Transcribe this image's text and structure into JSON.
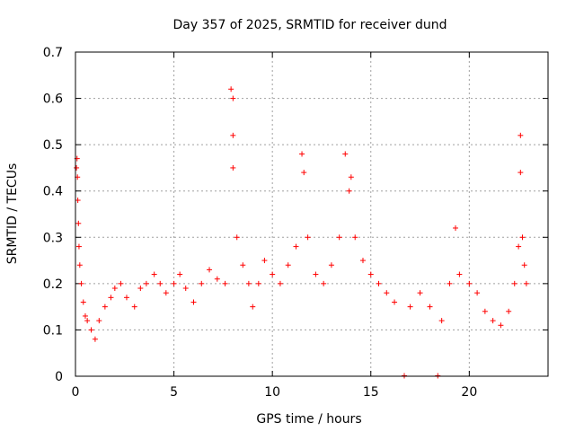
{
  "chart_data": {
    "type": "scatter",
    "title": "Day 357 of 2025, SRMTID for receiver dund",
    "xlabel": "GPS time / hours",
    "ylabel": "SRMTID / TECUs",
    "xlim": [
      0,
      24
    ],
    "ylim": [
      0,
      0.7
    ],
    "xticks": [
      0,
      5,
      10,
      15,
      20
    ],
    "xtick_labels": [
      "0",
      "5",
      "10",
      "15",
      "20"
    ],
    "yticks": [
      0,
      0.1,
      0.2,
      0.3,
      0.4,
      0.5,
      0.6,
      0.7
    ],
    "ytick_labels": [
      "0",
      "0.1",
      "0.2",
      "0.3",
      "0.4",
      "0.5",
      "0.6",
      "0.7"
    ],
    "grid": true,
    "marker": "+",
    "marker_color": "#ff0000",
    "series": [
      {
        "name": "SRMTID",
        "points": [
          [
            0.05,
            0.45
          ],
          [
            0.08,
            0.47
          ],
          [
            0.1,
            0.43
          ],
          [
            0.12,
            0.38
          ],
          [
            0.15,
            0.33
          ],
          [
            0.18,
            0.28
          ],
          [
            0.22,
            0.24
          ],
          [
            0.3,
            0.2
          ],
          [
            0.4,
            0.16
          ],
          [
            0.5,
            0.13
          ],
          [
            0.6,
            0.12
          ],
          [
            0.8,
            0.1
          ],
          [
            1.0,
            0.08
          ],
          [
            1.2,
            0.12
          ],
          [
            1.5,
            0.15
          ],
          [
            1.8,
            0.17
          ],
          [
            2.0,
            0.19
          ],
          [
            2.3,
            0.2
          ],
          [
            2.6,
            0.17
          ],
          [
            3.0,
            0.15
          ],
          [
            3.3,
            0.19
          ],
          [
            3.6,
            0.2
          ],
          [
            4.0,
            0.22
          ],
          [
            4.3,
            0.2
          ],
          [
            4.6,
            0.18
          ],
          [
            5.0,
            0.2
          ],
          [
            5.3,
            0.22
          ],
          [
            5.6,
            0.19
          ],
          [
            6.0,
            0.16
          ],
          [
            6.4,
            0.2
          ],
          [
            6.8,
            0.23
          ],
          [
            7.2,
            0.21
          ],
          [
            7.6,
            0.2
          ],
          [
            7.9,
            0.62
          ],
          [
            8.0,
            0.6
          ],
          [
            8.0,
            0.52
          ],
          [
            8.0,
            0.45
          ],
          [
            8.2,
            0.3
          ],
          [
            8.5,
            0.24
          ],
          [
            8.8,
            0.2
          ],
          [
            9.0,
            0.15
          ],
          [
            9.3,
            0.2
          ],
          [
            9.6,
            0.25
          ],
          [
            10.0,
            0.22
          ],
          [
            10.4,
            0.2
          ],
          [
            10.8,
            0.24
          ],
          [
            11.2,
            0.28
          ],
          [
            11.5,
            0.48
          ],
          [
            11.6,
            0.44
          ],
          [
            11.8,
            0.3
          ],
          [
            12.2,
            0.22
          ],
          [
            12.6,
            0.2
          ],
          [
            13.0,
            0.24
          ],
          [
            13.4,
            0.3
          ],
          [
            13.7,
            0.48
          ],
          [
            13.9,
            0.4
          ],
          [
            14.0,
            0.43
          ],
          [
            14.2,
            0.3
          ],
          [
            14.6,
            0.25
          ],
          [
            15.0,
            0.22
          ],
          [
            15.4,
            0.2
          ],
          [
            15.8,
            0.18
          ],
          [
            16.2,
            0.16
          ],
          [
            16.7,
            0.001
          ],
          [
            17.0,
            0.15
          ],
          [
            17.5,
            0.18
          ],
          [
            18.0,
            0.15
          ],
          [
            18.4,
            0.001
          ],
          [
            18.6,
            0.12
          ],
          [
            19.0,
            0.2
          ],
          [
            19.3,
            0.32
          ],
          [
            19.5,
            0.22
          ],
          [
            20.0,
            0.2
          ],
          [
            20.4,
            0.18
          ],
          [
            20.8,
            0.14
          ],
          [
            21.2,
            0.12
          ],
          [
            21.6,
            0.11
          ],
          [
            22.0,
            0.14
          ],
          [
            22.3,
            0.2
          ],
          [
            22.5,
            0.28
          ],
          [
            22.6,
            0.52
          ],
          [
            22.6,
            0.44
          ],
          [
            22.7,
            0.3
          ],
          [
            22.8,
            0.24
          ],
          [
            22.9,
            0.2
          ]
        ]
      }
    ]
  }
}
